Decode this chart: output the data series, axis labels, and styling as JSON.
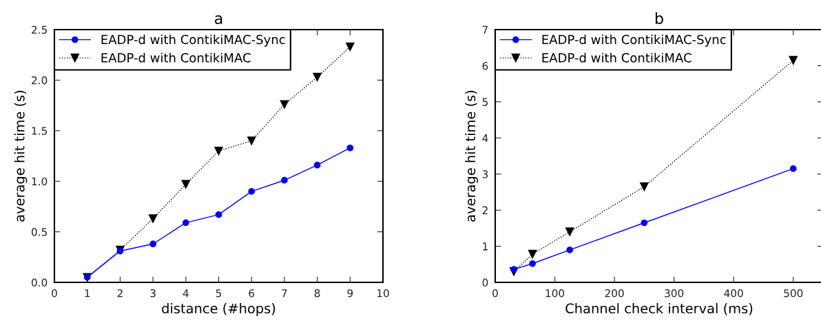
{
  "chart_data": [
    {
      "type": "line",
      "title": "a",
      "xlabel": "distance (#hops)",
      "ylabel": "average hit time (s)",
      "x": [
        1,
        2,
        3,
        4,
        5,
        6,
        7,
        8,
        9
      ],
      "series": [
        {
          "name": "EADP-d with ContikiMAC-Sync",
          "color": "#0000ff",
          "marker": "circle",
          "line_style": "solid",
          "values": [
            0.05,
            0.31,
            0.38,
            0.59,
            0.67,
            0.9,
            1.01,
            1.16,
            1.33
          ]
        },
        {
          "name": "EADP-d with ContikiMAC",
          "color": "#000000",
          "marker": "triangle",
          "line_style": "dotted",
          "values": [
            0.05,
            0.32,
            0.63,
            0.97,
            1.3,
            1.4,
            1.76,
            2.03,
            2.33
          ]
        }
      ],
      "xlim": [
        0,
        10
      ],
      "xticks": [
        0,
        1,
        2,
        3,
        4,
        5,
        6,
        7,
        8,
        9,
        10
      ],
      "ylim": [
        0,
        2.5
      ],
      "yticks": [
        {
          "value": 0,
          "label": "0.0"
        },
        0.5,
        {
          "value": 1,
          "label": "1.0"
        },
        1.5,
        {
          "value": 2,
          "label": "2.0"
        },
        2.5
      ],
      "legend": "top left",
      "grid": false
    },
    {
      "type": "line",
      "title": "b",
      "xlabel": "Channel check interval (ms)",
      "ylabel": "average hit time (s)",
      "x": [
        31.25,
        62.5,
        125,
        250,
        500
      ],
      "series": [
        {
          "name": "EADP-d with ContikiMAC-Sync",
          "color": "#0000ff",
          "marker": "circle",
          "line_style": "solid",
          "values": [
            0.36,
            0.52,
            0.9,
            1.65,
            3.15
          ]
        },
        {
          "name": "EADP-d with ContikiMAC",
          "color": "#000000",
          "marker": "triangle",
          "line_style": "dotted",
          "values": [
            0.3,
            0.78,
            1.4,
            2.65,
            6.15
          ]
        }
      ],
      "xlim": [
        0,
        550
      ],
      "xticks": [
        0,
        100,
        200,
        300,
        400,
        500
      ],
      "ylim": [
        0,
        7
      ],
      "yticks": [
        0,
        1,
        2,
        3,
        4,
        5,
        6,
        7
      ],
      "legend": "top left",
      "grid": false
    }
  ]
}
